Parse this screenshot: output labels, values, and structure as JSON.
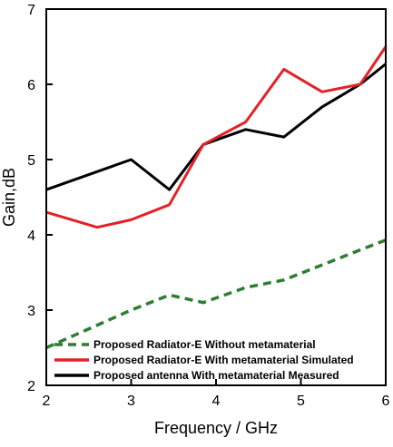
{
  "chart_data": {
    "type": "line",
    "title": "",
    "xlabel": "Frequency / GHz",
    "ylabel": "Gain,dB",
    "xlim": [
      2,
      6
    ],
    "ylim": [
      2,
      7
    ],
    "xticks": [
      2,
      3,
      4,
      5,
      6
    ],
    "yticks": [
      2,
      3,
      4,
      5,
      6,
      7
    ],
    "grid": false,
    "legend_position": "bottom-left",
    "series": [
      {
        "name": "Proposed Radiator-E Without metamaterial",
        "color": "#2e7d32",
        "style": "dashed",
        "x": [
          2.0,
          2.6,
          3.0,
          3.45,
          3.85,
          4.35,
          4.8,
          5.25,
          5.7,
          6.0
        ],
        "y": [
          2.5,
          2.8,
          3.0,
          3.2,
          3.1,
          3.3,
          3.4,
          3.6,
          3.8,
          3.93
        ]
      },
      {
        "name": "Proposed Radiator-E With metamaterial Simulated",
        "color": "#e32228",
        "style": "solid",
        "x": [
          2.0,
          2.6,
          3.0,
          3.45,
          3.85,
          4.35,
          4.8,
          5.25,
          5.7,
          6.0
        ],
        "y": [
          4.3,
          4.1,
          4.2,
          4.4,
          5.2,
          5.5,
          6.2,
          5.9,
          6.0,
          6.5
        ]
      },
      {
        "name": "Proposed antenna With metamaterial Measured",
        "color": "#000000",
        "style": "solid",
        "x": [
          2.0,
          3.0,
          3.45,
          3.85,
          4.35,
          4.8,
          5.25,
          5.7,
          6.0
        ],
        "y": [
          4.6,
          5.0,
          4.6,
          5.2,
          5.4,
          5.3,
          5.7,
          6.0,
          6.27
        ]
      }
    ]
  }
}
